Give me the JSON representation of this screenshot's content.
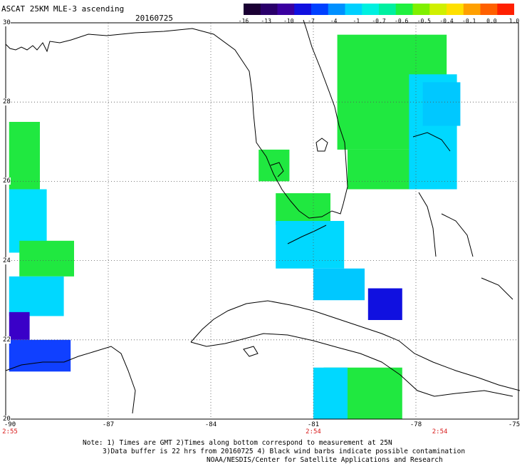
{
  "header": {
    "title": "ASCAT 25KM MLE-3 ascending",
    "date": "20160725"
  },
  "colorbar": {
    "labels": [
      "-16",
      "-13",
      "-10",
      "-7",
      "-4",
      "-1",
      "-0.7",
      "-0.6",
      "-0.5",
      "-0.4",
      "-0.1",
      "0.0",
      "1.0"
    ],
    "colors": [
      "#1a0033",
      "#2a006a",
      "#3a00a0",
      "#1010e0",
      "#0040ff",
      "#0090ff",
      "#00d0ff",
      "#00f0e0",
      "#00f0a0",
      "#20f040",
      "#80f000",
      "#d0f000",
      "#ffe000",
      "#ffa000",
      "#ff6000",
      "#ff2000"
    ]
  },
  "axes": {
    "lat_labels": [
      "30",
      "28",
      "26",
      "24",
      "22",
      "20"
    ],
    "lon_labels": [
      "-90",
      "-87",
      "-84",
      "-81",
      "-78",
      "-75"
    ],
    "times": [
      {
        "lon": "-90",
        "text": "2:55"
      },
      {
        "lon": "-81",
        "text": "2:54"
      },
      {
        "lon": "-77.3",
        "text": "2:54"
      }
    ]
  },
  "notes": [
    "Note: 1) Times are GMT 2)Times along bottom correspond to measurement at 25N",
    "3)Data buffer is 22 hrs from 20160725 4) Black wind barbs indicate possible contamination",
    "NOAA/NESDIS/Center for Satellite Applications and Research"
  ],
  "map_data": {
    "lon_range": [
      -90,
      -75
    ],
    "lat_range": [
      20,
      30
    ],
    "swaths": [
      {
        "name": "west",
        "cells": [
          {
            "lon": -89.9,
            "lat": 25.8,
            "w": 0.9,
            "h": 1.7,
            "color": "#20e840"
          },
          {
            "lon": -89.9,
            "lat": 24.2,
            "w": 1.1,
            "h": 1.6,
            "color": "#00e0ff"
          },
          {
            "lon": -89.6,
            "lat": 23.6,
            "w": 1.6,
            "h": 0.9,
            "color": "#20e840"
          },
          {
            "lon": -89.9,
            "lat": 22.6,
            "w": 1.6,
            "h": 1.0,
            "color": "#00d8ff"
          },
          {
            "lon": -89.9,
            "lat": 22.0,
            "w": 0.6,
            "h": 0.7,
            "color": "#3a00c8"
          },
          {
            "lon": -89.9,
            "lat": 21.2,
            "w": 1.8,
            "h": 0.8,
            "color": "#1040ff"
          }
        ]
      },
      {
        "name": "central",
        "cells": [
          {
            "lon": -82.6,
            "lat": 26.0,
            "w": 0.9,
            "h": 0.8,
            "color": "#20e840"
          },
          {
            "lon": -82.1,
            "lat": 24.9,
            "w": 1.6,
            "h": 0.8,
            "color": "#20e840"
          },
          {
            "lon": -82.1,
            "lat": 23.8,
            "w": 2.0,
            "h": 1.2,
            "color": "#00d8ff"
          },
          {
            "lon": -81.0,
            "lat": 23.0,
            "w": 1.5,
            "h": 0.8,
            "color": "#00c8ff"
          },
          {
            "lon": -79.4,
            "lat": 22.5,
            "w": 1.0,
            "h": 0.8,
            "color": "#1010e0"
          },
          {
            "lon": -80.7,
            "lat": 20.0,
            "w": 2.3,
            "h": 1.3,
            "color": "#20e840"
          },
          {
            "lon": -81.0,
            "lat": 20.0,
            "w": 1.0,
            "h": 1.3,
            "color": "#00d8ff"
          }
        ]
      },
      {
        "name": "east",
        "cells": [
          {
            "lon": -80.3,
            "lat": 26.8,
            "w": 3.2,
            "h": 2.9,
            "color": "#20e840"
          },
          {
            "lon": -80.0,
            "lat": 25.8,
            "w": 2.6,
            "h": 1.0,
            "color": "#20e840"
          },
          {
            "lon": -78.2,
            "lat": 25.8,
            "w": 1.4,
            "h": 2.9,
            "color": "#00d8ff"
          },
          {
            "lon": -77.8,
            "lat": 27.4,
            "w": 1.1,
            "h": 1.1,
            "color": "#00c8ff"
          }
        ]
      }
    ]
  }
}
